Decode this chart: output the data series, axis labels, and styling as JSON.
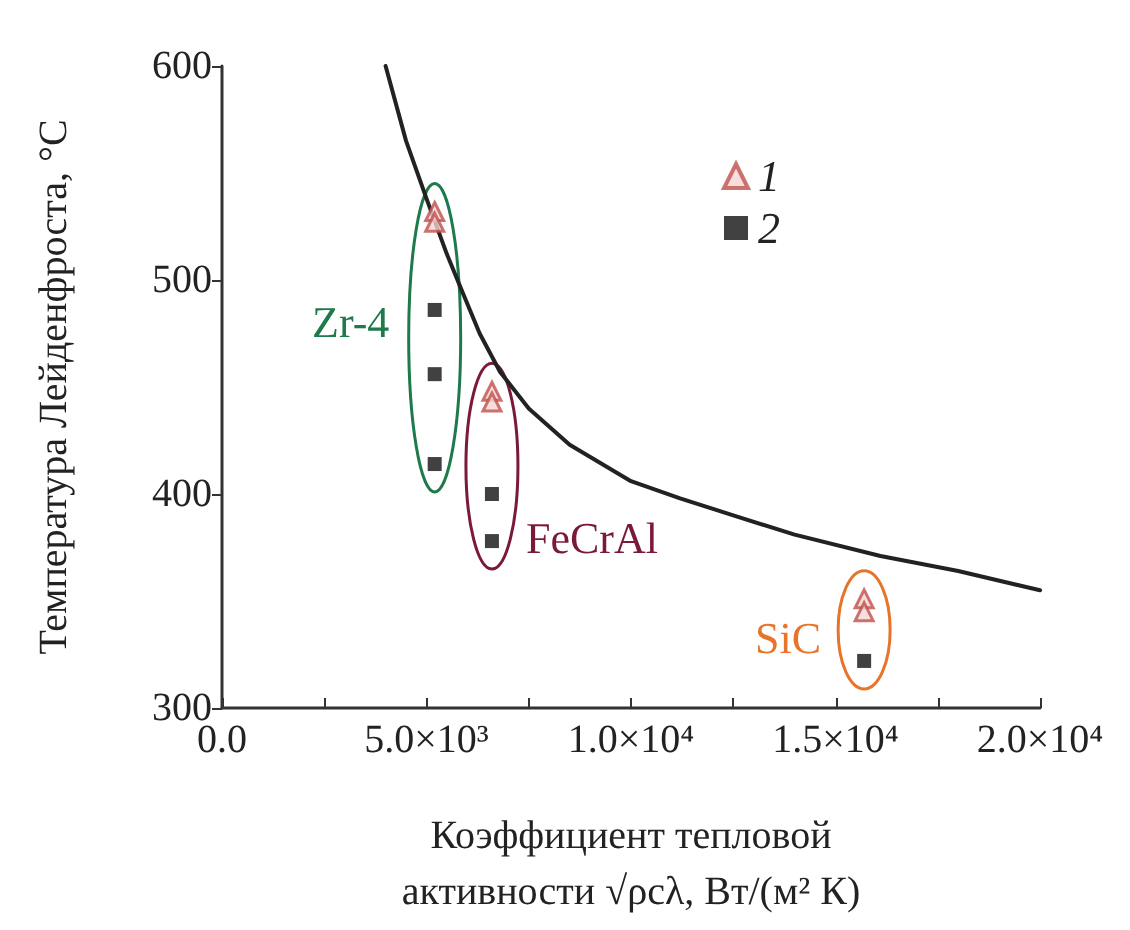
{
  "chart_data": {
    "type": "scatter",
    "xlabel": "Коэффициент тепловой\nактивности √ρcλ, Вт/(м² К)",
    "ylabel": "Температура Лейденфроста, °C",
    "xlim": [
      0,
      20000
    ],
    "ylim": [
      300,
      600
    ],
    "xticks": [
      {
        "value": 0,
        "label": "0.0"
      },
      {
        "value": 2500,
        "label": null
      },
      {
        "value": 5000,
        "label": "5.0×10³"
      },
      {
        "value": 7500,
        "label": null
      },
      {
        "value": 10000,
        "label": "1.0×10⁴"
      },
      {
        "value": 12500,
        "label": null
      },
      {
        "value": 15000,
        "label": "1.5×10⁴"
      },
      {
        "value": 17500,
        "label": null
      },
      {
        "value": 20000,
        "label": "2.0×10⁴"
      }
    ],
    "yticks": [
      300,
      400,
      500,
      600
    ],
    "legend": "top right",
    "grid": false,
    "series": [
      {
        "name": "1",
        "color": "#c0504d",
        "marker": "triangle",
        "x": [
          5200,
          5200,
          6600,
          6600,
          15700,
          15700
        ],
        "values": [
          532,
          527,
          448,
          443,
          351,
          345
        ]
      },
      {
        "name": "2",
        "color": "#111111",
        "marker": "square",
        "x": [
          5200,
          5200,
          5200,
          6600,
          6600,
          15700
        ],
        "values": [
          486,
          456,
          414,
          400,
          378,
          322
        ]
      },
      {
        "type": "line",
        "color": "#222222",
        "marker": "none",
        "x": [
          4000,
          4500,
          5000,
          5500,
          5800,
          6300,
          6800,
          7500,
          8500,
          10000,
          11200,
          12500,
          14000,
          16100,
          18000,
          20000
        ],
        "values": [
          600,
          565,
          538,
          512,
          498,
          475,
          457,
          440,
          423,
          406,
          398,
          390,
          381,
          371,
          364,
          355
        ]
      }
    ],
    "annotations": [
      "Zr-4",
      "FeCrAl",
      "SiC"
    ]
  }
}
